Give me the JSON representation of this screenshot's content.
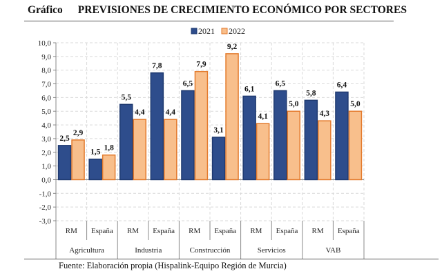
{
  "header": {
    "label": "Gráfico",
    "title": "PREVISIONES DE CRECIMIENTO ECONÓMICO POR SECTORES"
  },
  "footer": {
    "source": "Fuente: Elaboración propia (Hispalink-Equipo Región de Murcia)"
  },
  "chart_data": {
    "type": "bar",
    "title": "PREVISIONES DE CRECIMIENTO ECONÓMICO POR SECTORES",
    "groups": [
      "Agricultura",
      "Industria",
      "Construcción",
      "Servicios",
      "VAB"
    ],
    "subcategories": [
      "RM",
      "España",
      "RM",
      "España",
      "RM",
      "España",
      "RM",
      "España",
      "RM",
      "España"
    ],
    "series": [
      {
        "name": "2021",
        "color": "#2e4d8c",
        "values": [
          2.5,
          1.5,
          5.5,
          7.8,
          6.5,
          3.1,
          6.1,
          6.5,
          5.8,
          6.4
        ]
      },
      {
        "name": "2022",
        "color": "#f8bf8c",
        "border": "#e37a2c",
        "values": [
          2.9,
          1.8,
          4.4,
          4.4,
          7.9,
          9.2,
          4.1,
          5.0,
          4.3,
          5.0
        ]
      }
    ],
    "ylim": [
      -3,
      10
    ],
    "yticks": [
      "10,0",
      "9,0",
      "8,0",
      "7,0",
      "6,0",
      "5,0",
      "4,0",
      "3,0",
      "2,0",
      "1,0",
      "0,0",
      "-1,0",
      "-2,0",
      "-3,0"
    ],
    "grid": true,
    "legend": "top-center"
  }
}
